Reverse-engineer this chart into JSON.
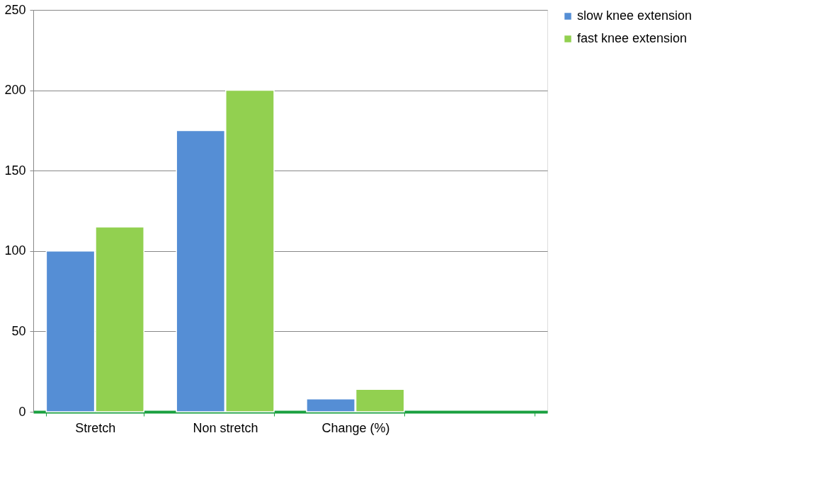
{
  "chart_data": {
    "type": "bar",
    "categories": [
      "Stretch",
      "Non stretch",
      "Change (%)",
      null
    ],
    "series": [
      {
        "name": "slow knee extension",
        "color": "#558ed5",
        "values": [
          100,
          175,
          8,
          null
        ]
      },
      {
        "name": "fast knee extension",
        "color": "#92d050",
        "values": [
          115,
          200,
          14,
          null
        ]
      }
    ],
    "ylim": [
      0,
      250
    ],
    "yticks": [
      0,
      50,
      100,
      150,
      200,
      250
    ],
    "grid": "y",
    "legend": "right"
  }
}
